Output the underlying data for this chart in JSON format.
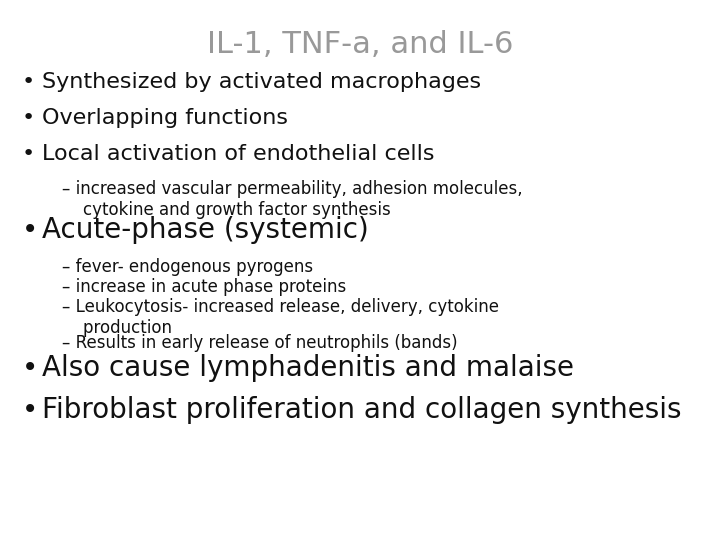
{
  "title": "IL-1, TNF-a, and IL-6",
  "title_color": "#999999",
  "title_fontsize": 22,
  "background_color": "#ffffff",
  "text_color": "#111111",
  "bullet_fontsize": 16,
  "acute_fontsize": 20,
  "last_fontsize": 20,
  "sub_fontsize": 12,
  "items": [
    {
      "type": "bullet",
      "text": "Synthesized by activated macrophages",
      "size": "normal"
    },
    {
      "type": "bullet",
      "text": "Overlapping functions",
      "size": "normal"
    },
    {
      "type": "bullet",
      "text": "Local activation of endothelial cells",
      "size": "normal"
    },
    {
      "type": "sub",
      "text": "– increased vascular permeability, adhesion molecules,\n    cytokine and growth factor synthesis",
      "size": "sub"
    },
    {
      "type": "bullet",
      "text": "Acute-phase (systemic)",
      "size": "large"
    },
    {
      "type": "sub",
      "text": "– fever- endogenous pyrogens",
      "size": "sub"
    },
    {
      "type": "sub",
      "text": "– increase in acute phase proteins",
      "size": "sub"
    },
    {
      "type": "sub",
      "text": "– Leukocytosis- increased release, delivery, cytokine\n    production",
      "size": "sub"
    },
    {
      "type": "sub",
      "text": "– Results in early release of neutrophils (bands)",
      "size": "sub"
    },
    {
      "type": "bullet",
      "text": "Also cause lymphadenitis and malaise",
      "size": "large"
    },
    {
      "type": "bullet",
      "text": "Fibroblast proliferation and collagen synthesis",
      "size": "large"
    }
  ]
}
